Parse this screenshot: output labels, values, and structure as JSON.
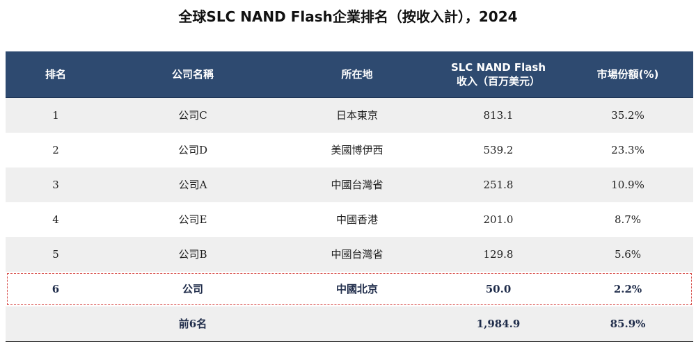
{
  "title": "全球SLC NAND Flash企業排名（按收入計），2024",
  "table": {
    "headers": {
      "rank": "排名",
      "company": "公司名稱",
      "location": "所在地",
      "revenue_line1": "SLC NAND Flash",
      "revenue_line2": "收入（百万美元）",
      "share": "市場份額(%)"
    },
    "rows": [
      {
        "rank": "1",
        "company": "公司C",
        "location": "日本東京",
        "revenue": "813.1",
        "share": "35.2%"
      },
      {
        "rank": "2",
        "company": "公司D",
        "location": "美國博伊西",
        "revenue": "539.2",
        "share": "23.3%"
      },
      {
        "rank": "3",
        "company": "公司A",
        "location": "中國台灣省",
        "revenue": "251.8",
        "share": "10.9%"
      },
      {
        "rank": "4",
        "company": "公司E",
        "location": "中國香港",
        "revenue": "201.0",
        "share": "8.7%"
      },
      {
        "rank": "5",
        "company": "公司B",
        "location": "中國台灣省",
        "revenue": "129.8",
        "share": "5.6%"
      },
      {
        "rank": "6",
        "company": "公司",
        "location": "中國北京",
        "revenue": "50.0",
        "share": "2.2%"
      }
    ],
    "total": {
      "label": "前6名",
      "revenue": "1,984.9",
      "share": "85.9%"
    }
  },
  "colors": {
    "header_bg": "#2e4a70",
    "stripe_bg": "#efefef",
    "highlight_border": "#d9534f"
  }
}
